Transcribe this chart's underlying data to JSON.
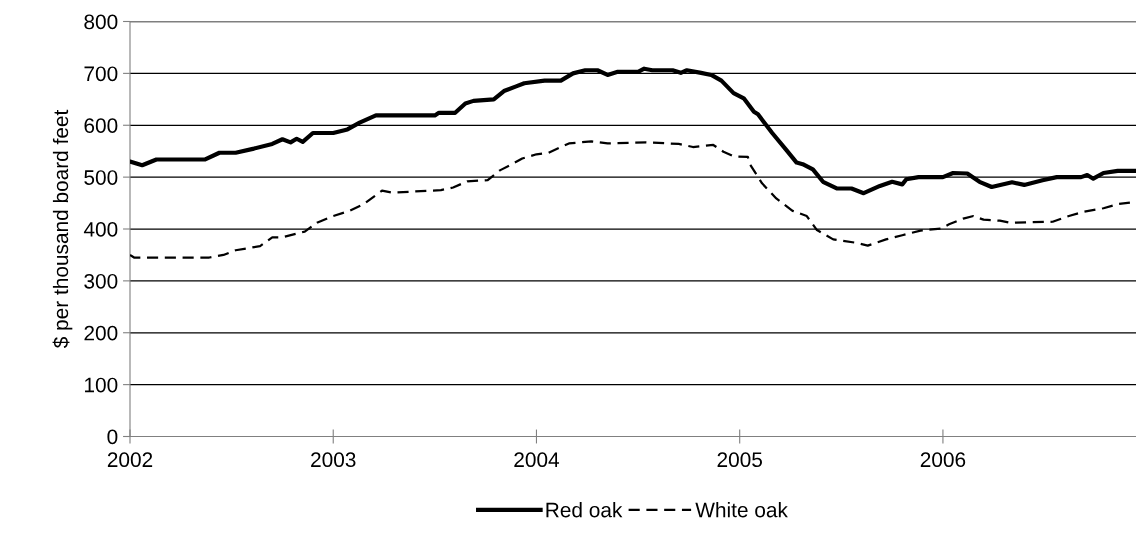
{
  "chart_data": {
    "type": "line",
    "ylabel": "$ per thousand board feet",
    "xlim": [
      2002,
      2006.95
    ],
    "xticks": [
      2002,
      2003,
      2004,
      2005,
      2006
    ],
    "ylim": [
      0,
      800
    ],
    "yticks": [
      0,
      100,
      200,
      300,
      400,
      500,
      600,
      700,
      800
    ],
    "grid": "y",
    "legend": "bottom",
    "marker": "none",
    "series": [
      {
        "name": "Red oak",
        "color": "#000000",
        "line_style": "solid",
        "x": [
          2002.0,
          2002.06,
          2002.13,
          2002.37,
          2002.44,
          2002.52,
          2002.61,
          2002.7,
          2002.75,
          2002.79,
          2002.82,
          2002.85,
          2002.9,
          2003.0,
          2003.07,
          2003.13,
          2003.21,
          2003.5,
          2003.52,
          2003.6,
          2003.65,
          2003.69,
          2003.79,
          2003.84,
          2003.9,
          2003.94,
          2004.04,
          2004.12,
          2004.18,
          2004.24,
          2004.3,
          2004.35,
          2004.4,
          2004.5,
          2004.53,
          2004.57,
          2004.67,
          2004.71,
          2004.74,
          2004.81,
          2004.86,
          2004.91,
          2004.97,
          2005.02,
          2005.07,
          2005.09,
          2005.16,
          2005.23,
          2005.28,
          2005.31,
          2005.36,
          2005.41,
          2005.48,
          2005.55,
          2005.61,
          2005.69,
          2005.75,
          2005.8,
          2005.82,
          2005.88,
          2006.0,
          2006.05,
          2006.12,
          2006.18,
          2006.24,
          2006.34,
          2006.4,
          2006.49,
          2006.56,
          2006.68,
          2006.71,
          2006.74,
          2006.79,
          2006.86,
          2006.95
        ],
        "values": [
          530,
          523,
          534,
          534,
          547,
          547,
          555,
          564,
          573,
          567,
          574,
          568,
          585,
          585,
          592,
          605,
          619,
          619,
          624,
          624,
          642,
          647,
          650,
          666,
          675,
          681,
          686,
          686,
          700,
          706,
          706,
          697,
          703,
          703,
          709,
          706,
          706,
          701,
          706,
          701,
          697,
          686,
          662,
          652,
          626,
          621,
          585,
          552,
          528,
          525,
          515,
          491,
          478,
          478,
          469,
          483,
          491,
          486,
          496,
          500,
          500,
          508,
          507,
          491,
          481,
          490,
          485,
          494,
          500,
          500,
          504,
          497,
          508,
          512,
          512
        ]
      },
      {
        "name": "White oak",
        "color": "#000000",
        "line_style": "dashed",
        "x": [
          2002.0,
          2002.02,
          2002.39,
          2002.46,
          2002.52,
          2002.58,
          2002.64,
          2002.7,
          2002.75,
          2002.86,
          2002.92,
          2003.0,
          2003.08,
          2003.15,
          2003.24,
          2003.29,
          2003.53,
          2003.59,
          2003.66,
          2003.76,
          2003.82,
          2003.88,
          2003.93,
          2004.0,
          2004.06,
          2004.12,
          2004.16,
          2004.27,
          2004.35,
          2004.54,
          2004.7,
          2004.77,
          2004.87,
          2004.92,
          2004.97,
          2005.04,
          2005.05,
          2005.11,
          2005.18,
          2005.26,
          2005.33,
          2005.38,
          2005.46,
          2005.58,
          2005.63,
          2005.72,
          2005.8,
          2005.89,
          2005.99,
          2006.03,
          2006.1,
          2006.15,
          2006.2,
          2006.28,
          2006.33,
          2006.54,
          2006.62,
          2006.69,
          2006.79,
          2006.86,
          2006.92
        ],
        "values": [
          350,
          345,
          345,
          350,
          359,
          363,
          367,
          384,
          384,
          395,
          412,
          425,
          435,
          448,
          474,
          470,
          475,
          480,
          492,
          494,
          513,
          525,
          536,
          544,
          547,
          558,
          565,
          569,
          565,
          567,
          564,
          558,
          562,
          549,
          540,
          539,
          525,
          488,
          459,
          435,
          425,
          398,
          380,
          373,
          368,
          380,
          388,
          397,
          401,
          409,
          420,
          425,
          418,
          416,
          412,
          414,
          425,
          433,
          440,
          448,
          451
        ]
      }
    ]
  }
}
